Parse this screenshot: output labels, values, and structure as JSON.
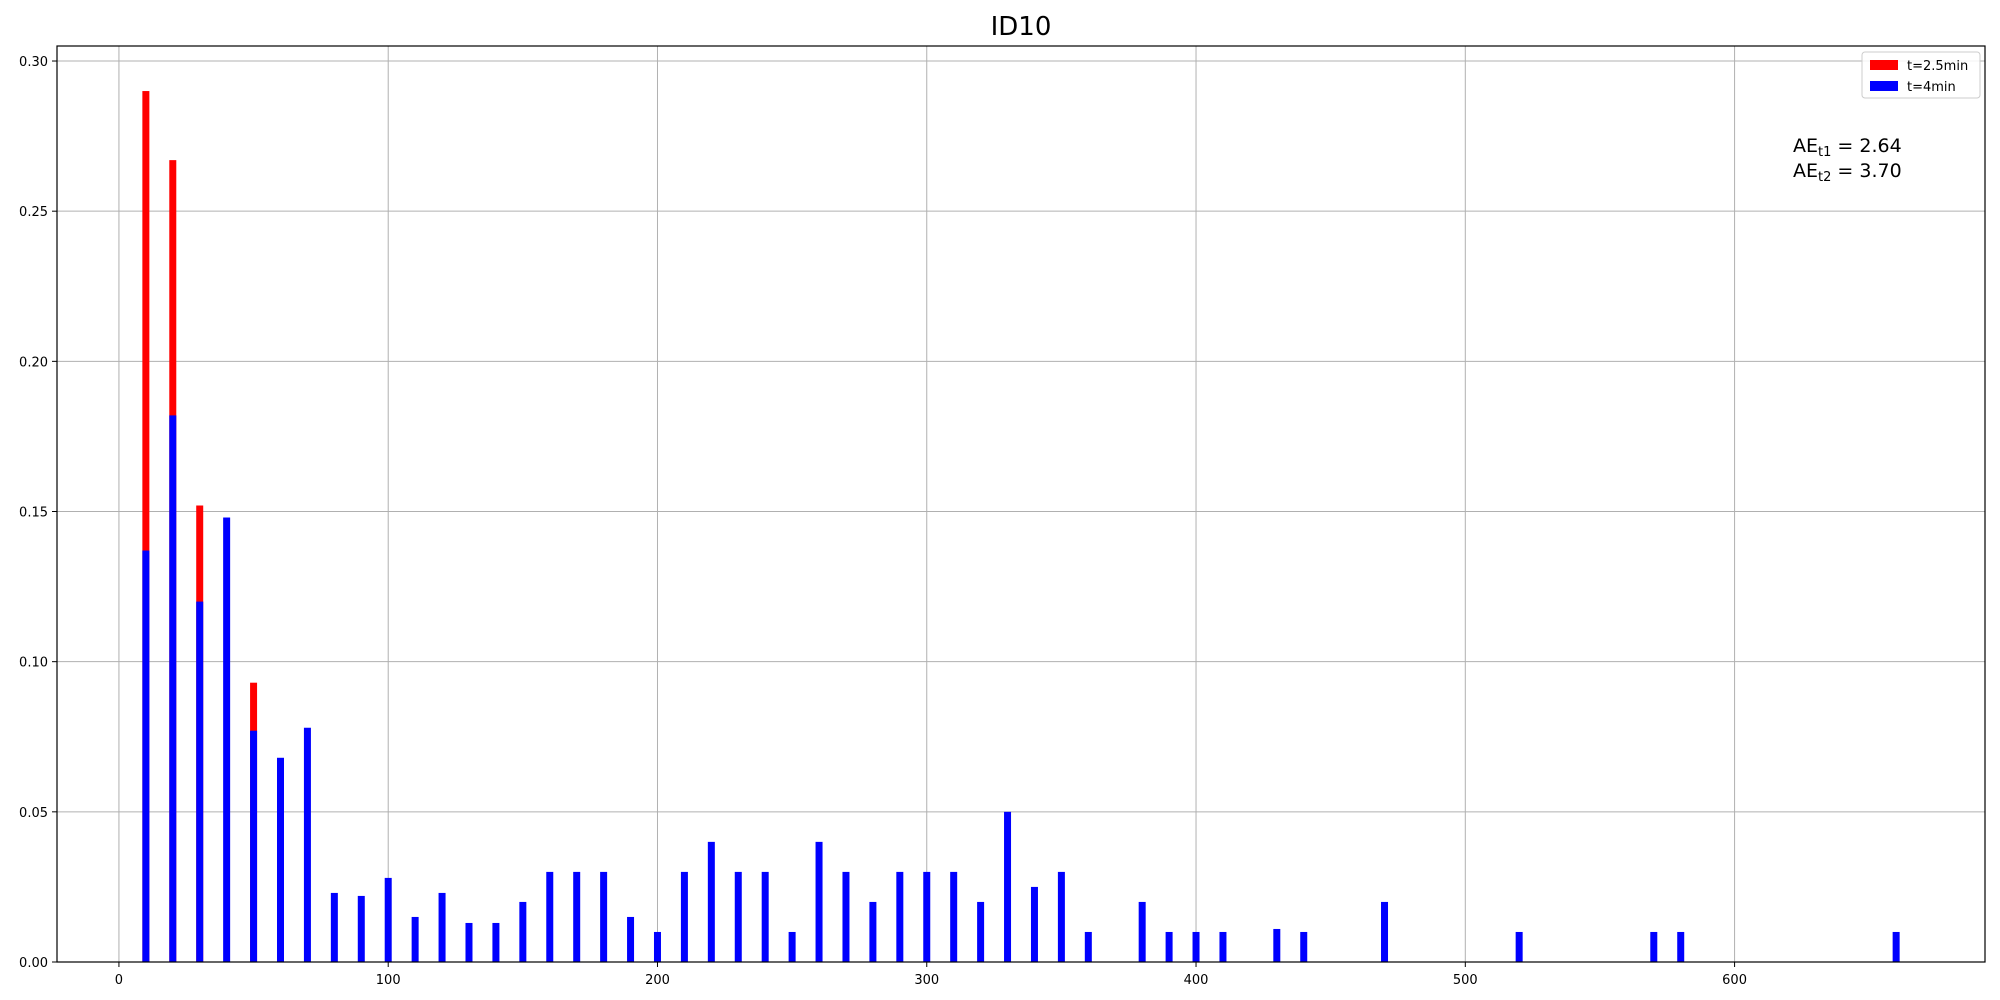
{
  "chart_data": {
    "type": "bar",
    "title": "ID10",
    "xlabel": "",
    "ylabel": "",
    "xlim": [
      -23,
      693
    ],
    "ylim": [
      0,
      0.305
    ],
    "xticks": [
      0,
      100,
      200,
      300,
      400,
      500,
      600
    ],
    "xtick_labels": [
      "0",
      "100",
      "200",
      "300",
      "400",
      "500",
      "600"
    ],
    "yticks": [
      0.0,
      0.05,
      0.1,
      0.15,
      0.2,
      0.25,
      0.3
    ],
    "ytick_labels": [
      "0.00",
      "0.05",
      "0.10",
      "0.15",
      "0.20",
      "0.25",
      "0.30"
    ],
    "grid": true,
    "legend_position": "top-right",
    "series": [
      {
        "name": "t=2.5min",
        "color": "#ff0000",
        "x": [
          10,
          20,
          30,
          50
        ],
        "values": [
          0.29,
          0.267,
          0.152,
          0.093
        ]
      },
      {
        "name": "t=4min",
        "color": "#0000ff",
        "x": [
          10,
          20,
          30,
          40,
          50,
          60,
          70,
          80,
          90,
          100,
          110,
          120,
          130,
          140,
          150,
          160,
          170,
          180,
          190,
          200,
          210,
          220,
          230,
          240,
          250,
          260,
          270,
          280,
          290,
          300,
          310,
          320,
          330,
          340,
          350,
          360,
          380,
          390,
          400,
          410,
          430,
          440,
          470,
          520,
          570,
          580,
          660
        ],
        "values": [
          0.137,
          0.182,
          0.12,
          0.148,
          0.077,
          0.068,
          0.078,
          0.023,
          0.022,
          0.028,
          0.015,
          0.023,
          0.013,
          0.013,
          0.02,
          0.03,
          0.03,
          0.03,
          0.015,
          0.01,
          0.03,
          0.04,
          0.03,
          0.03,
          0.01,
          0.04,
          0.03,
          0.02,
          0.03,
          0.03,
          0.03,
          0.02,
          0.05,
          0.025,
          0.03,
          0.01,
          0.02,
          0.01,
          0.01,
          0.01,
          0.011,
          0.01,
          0.02,
          0.01,
          0.01,
          0.01,
          0.01
        ]
      }
    ],
    "annotations": [
      {
        "main": "AE",
        "sub": "t1",
        "rest": " = 2.64"
      },
      {
        "main": "AE",
        "sub": "t2",
        "rest": " = 3.70"
      }
    ]
  }
}
